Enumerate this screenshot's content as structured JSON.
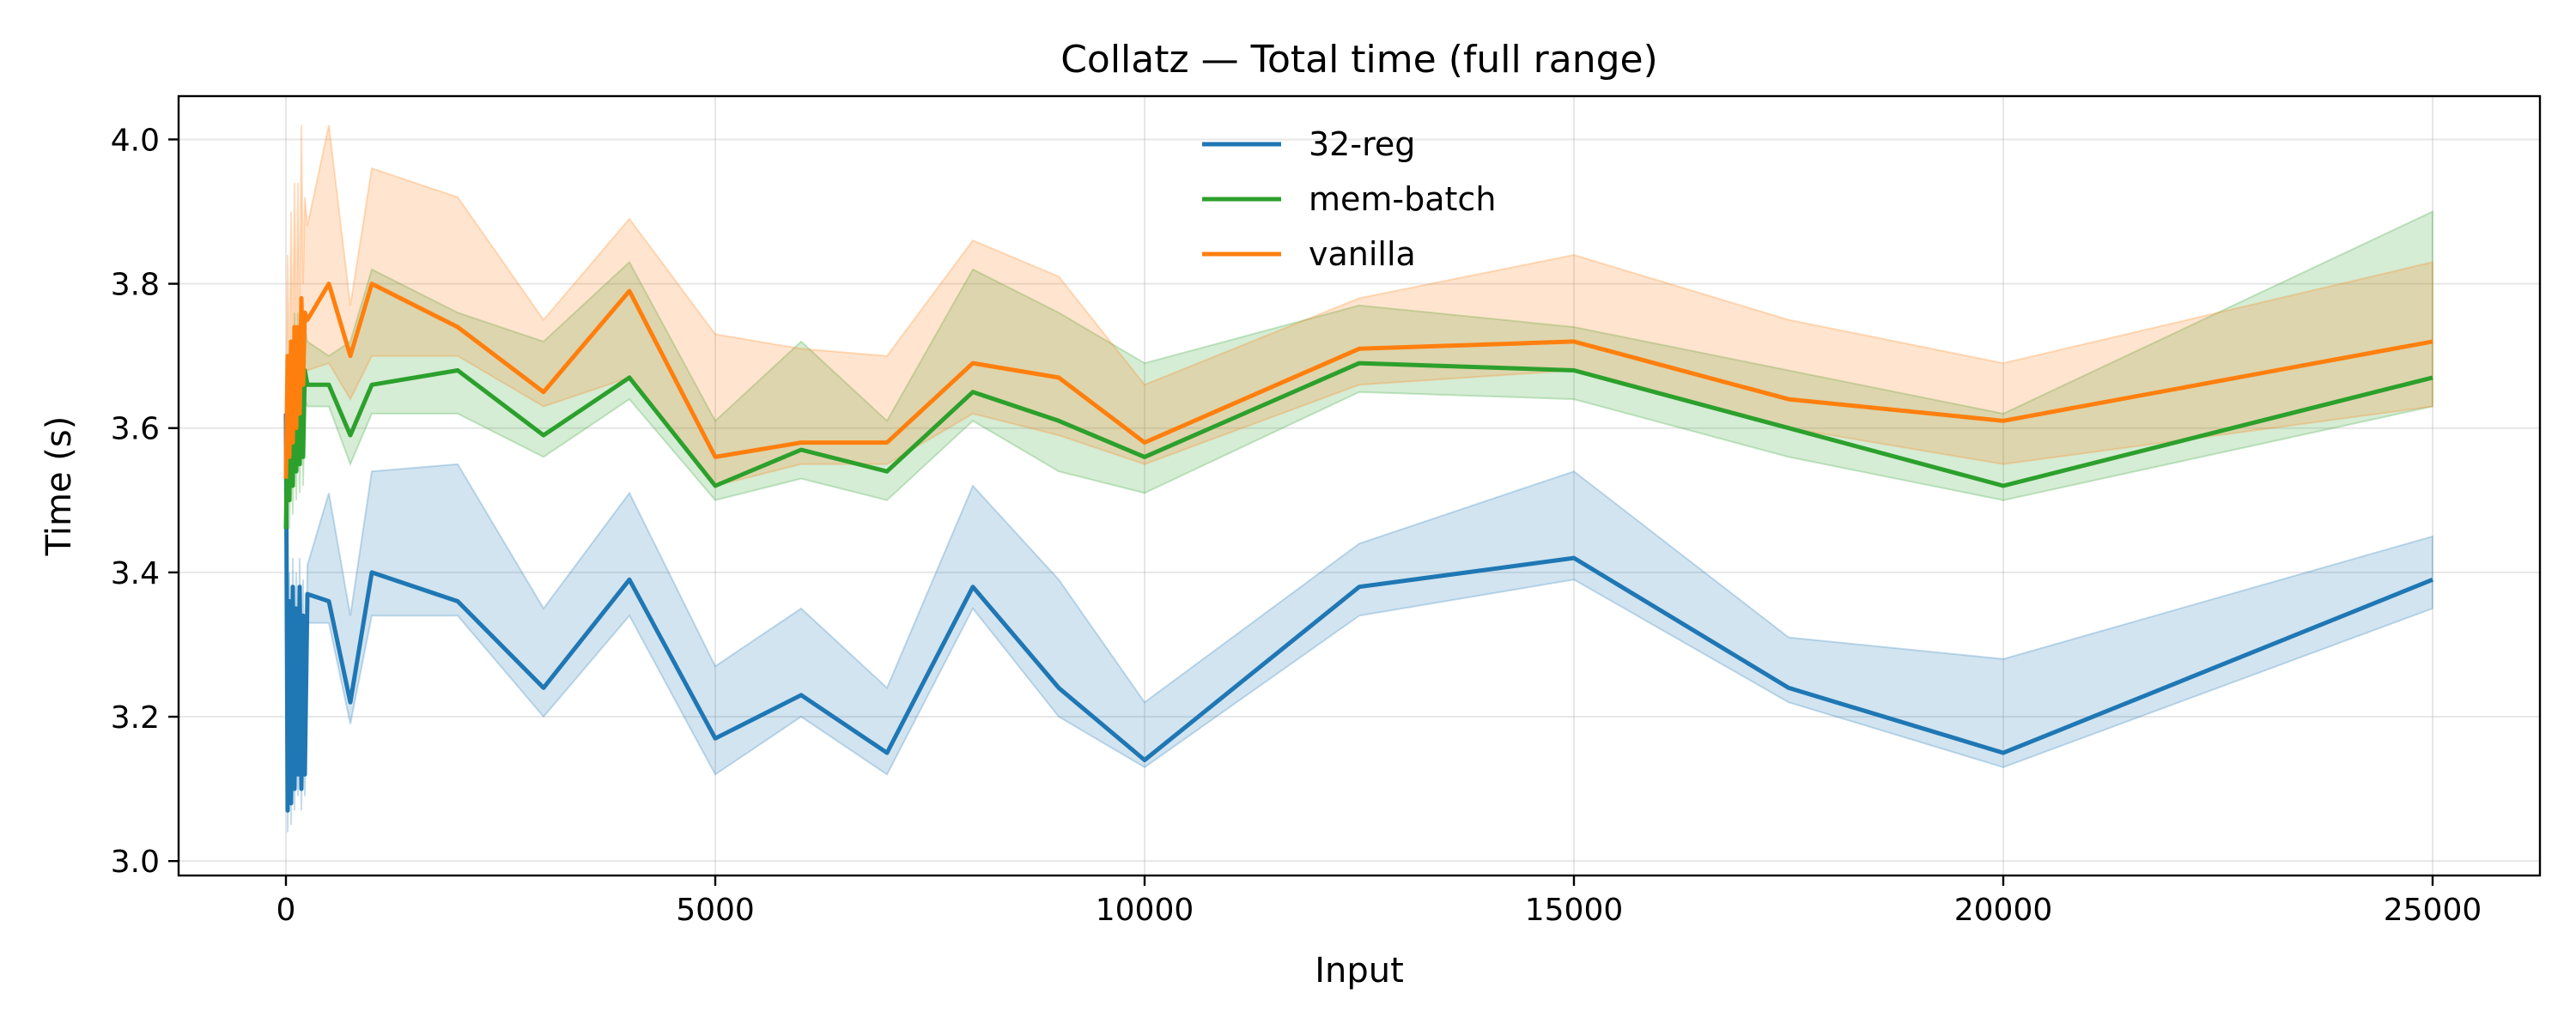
{
  "chart_data": {
    "type": "line",
    "title": "Collatz — Total time (full range)",
    "xlabel": "Input",
    "ylabel": "Time (s)",
    "xlim": [
      -1250,
      26250
    ],
    "ylim": [
      2.98,
      4.06
    ],
    "xticks": [
      0,
      5000,
      10000,
      15000,
      20000,
      25000
    ],
    "yticks": [
      3.0,
      3.2,
      3.4,
      3.6,
      3.8,
      4.0
    ],
    "xtick_labels": [
      "0",
      "5000",
      "10000",
      "15000",
      "20000",
      "25000"
    ],
    "ytick_labels": [
      "3.0",
      "3.2",
      "3.4",
      "3.6",
      "3.8",
      "4.0"
    ],
    "grid": true,
    "legend_position": "top-center",
    "series": [
      {
        "name": "32-reg",
        "color": "#1f77b4",
        "x": [
          0,
          20,
          40,
          60,
          80,
          100,
          120,
          140,
          160,
          180,
          200,
          220,
          250,
          500,
          750,
          1000,
          2000,
          3000,
          4000,
          5000,
          6000,
          7000,
          8000,
          9000,
          10000,
          12500,
          15000,
          17500,
          20000,
          25000
        ],
        "y": [
          3.62,
          3.07,
          3.36,
          3.08,
          3.38,
          3.1,
          3.35,
          3.12,
          3.38,
          3.1,
          3.34,
          3.12,
          3.37,
          3.36,
          3.22,
          3.4,
          3.36,
          3.24,
          3.39,
          3.17,
          3.23,
          3.15,
          3.38,
          3.24,
          3.14,
          3.38,
          3.42,
          3.24,
          3.15,
          3.39
        ],
        "lower": [
          3.58,
          3.04,
          3.3,
          3.05,
          3.32,
          3.07,
          3.3,
          3.09,
          3.32,
          3.07,
          3.29,
          3.09,
          3.33,
          3.33,
          3.19,
          3.34,
          3.34,
          3.2,
          3.34,
          3.12,
          3.2,
          3.12,
          3.35,
          3.2,
          3.13,
          3.34,
          3.39,
          3.22,
          3.13,
          3.35
        ],
        "upper": [
          3.66,
          3.1,
          3.4,
          3.12,
          3.42,
          3.14,
          3.4,
          3.16,
          3.42,
          3.14,
          3.39,
          3.16,
          3.41,
          3.51,
          3.34,
          3.54,
          3.55,
          3.35,
          3.51,
          3.27,
          3.35,
          3.24,
          3.52,
          3.39,
          3.22,
          3.44,
          3.54,
          3.31,
          3.28,
          3.45
        ]
      },
      {
        "name": "mem-batch",
        "color": "#2ca02c",
        "x": [
          0,
          20,
          40,
          60,
          80,
          100,
          120,
          140,
          160,
          180,
          200,
          220,
          250,
          500,
          750,
          1000,
          2000,
          3000,
          4000,
          5000,
          6000,
          7000,
          8000,
          9000,
          10000,
          12500,
          15000,
          17500,
          20000,
          25000
        ],
        "y": [
          3.46,
          3.62,
          3.5,
          3.68,
          3.52,
          3.7,
          3.54,
          3.7,
          3.55,
          3.72,
          3.56,
          3.68,
          3.66,
          3.66,
          3.59,
          3.66,
          3.68,
          3.59,
          3.67,
          3.52,
          3.57,
          3.54,
          3.65,
          3.61,
          3.56,
          3.69,
          3.68,
          3.6,
          3.52,
          3.67
        ],
        "lower": [
          3.44,
          3.58,
          3.46,
          3.64,
          3.48,
          3.66,
          3.5,
          3.66,
          3.51,
          3.68,
          3.52,
          3.64,
          3.63,
          3.63,
          3.55,
          3.62,
          3.62,
          3.56,
          3.64,
          3.5,
          3.53,
          3.5,
          3.61,
          3.54,
          3.51,
          3.65,
          3.64,
          3.56,
          3.5,
          3.63
        ],
        "upper": [
          3.5,
          3.66,
          3.54,
          3.72,
          3.56,
          3.76,
          3.58,
          3.76,
          3.59,
          3.78,
          3.6,
          3.74,
          3.72,
          3.7,
          3.72,
          3.82,
          3.76,
          3.72,
          3.83,
          3.61,
          3.72,
          3.61,
          3.82,
          3.76,
          3.69,
          3.77,
          3.74,
          3.68,
          3.62,
          3.9
        ]
      },
      {
        "name": "vanilla",
        "color": "#ff7f0e",
        "x": [
          0,
          20,
          40,
          60,
          80,
          100,
          120,
          140,
          160,
          180,
          200,
          220,
          250,
          500,
          750,
          1000,
          2000,
          3000,
          4000,
          5000,
          6000,
          7000,
          8000,
          9000,
          10000,
          12500,
          15000,
          17500,
          20000,
          25000
        ],
        "y": [
          3.53,
          3.7,
          3.56,
          3.72,
          3.58,
          3.74,
          3.6,
          3.74,
          3.62,
          3.78,
          3.66,
          3.76,
          3.75,
          3.8,
          3.7,
          3.8,
          3.74,
          3.65,
          3.79,
          3.56,
          3.58,
          3.58,
          3.69,
          3.67,
          3.58,
          3.71,
          3.72,
          3.64,
          3.61,
          3.72
        ],
        "lower": [
          3.5,
          3.6,
          3.5,
          3.64,
          3.52,
          3.66,
          3.54,
          3.66,
          3.56,
          3.7,
          3.6,
          3.68,
          3.68,
          3.69,
          3.64,
          3.7,
          3.7,
          3.63,
          3.67,
          3.52,
          3.55,
          3.55,
          3.62,
          3.59,
          3.55,
          3.66,
          3.68,
          3.6,
          3.55,
          3.63
        ],
        "upper": [
          3.6,
          3.84,
          3.66,
          3.9,
          3.7,
          3.94,
          3.72,
          3.94,
          3.74,
          4.02,
          3.8,
          3.92,
          3.88,
          4.02,
          3.77,
          3.96,
          3.92,
          3.75,
          3.89,
          3.73,
          3.71,
          3.7,
          3.86,
          3.81,
          3.66,
          3.78,
          3.84,
          3.75,
          3.69,
          3.83
        ]
      }
    ]
  }
}
